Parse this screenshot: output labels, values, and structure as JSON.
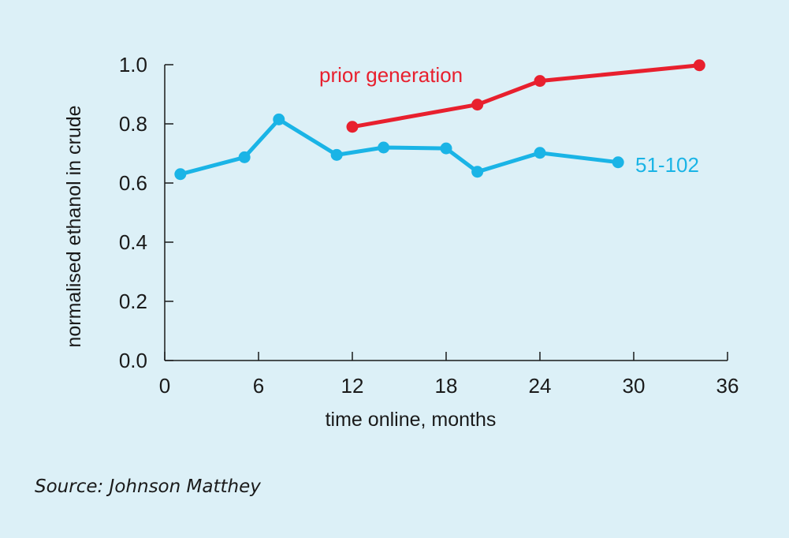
{
  "chart_data": {
    "type": "line",
    "xlabel": "time online, months",
    "ylabel": "normalised ethanol in crude",
    "xlim": [
      0,
      36
    ],
    "ylim": [
      0,
      1.0
    ],
    "x_ticks": [
      "0",
      "6",
      "12",
      "18",
      "24",
      "30",
      "36"
    ],
    "y_ticks": [
      "0.0",
      "0.2",
      "0.4",
      "0.6",
      "0.8",
      "1.0"
    ],
    "grid": false,
    "series": [
      {
        "name": "prior generation",
        "color": "#e8202e",
        "x": [
          12,
          20,
          24,
          34.2
        ],
        "y": [
          0.79,
          0.865,
          0.945,
          0.998
        ]
      },
      {
        "name": "51-102",
        "color": "#1ab4e6",
        "x": [
          1,
          5.1,
          7.3,
          11,
          14,
          18,
          20,
          24,
          29
        ],
        "y": [
          0.63,
          0.687,
          0.815,
          0.695,
          0.72,
          0.717,
          0.638,
          0.702,
          0.67
        ]
      }
    ]
  },
  "source": "Source: Johnson Matthey"
}
